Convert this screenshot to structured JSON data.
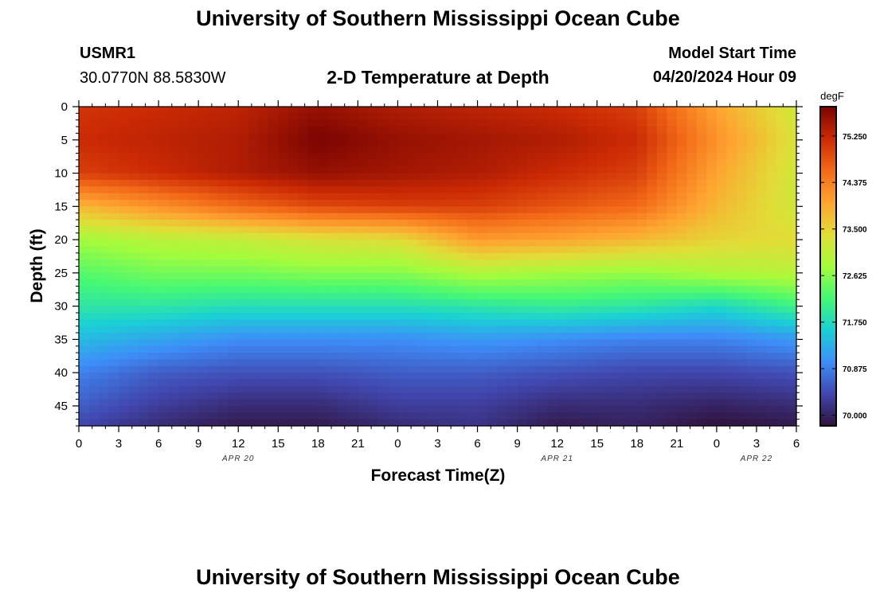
{
  "header": {
    "title": "University of Southern Mississippi Ocean Cube",
    "station_id": "USMR1",
    "location": "30.0770N  88.5830W",
    "model_start_label": "Model Start Time",
    "model_start_value": "04/20/2024 Hour 09"
  },
  "footer": {
    "title": "University of Southern Mississippi Ocean Cube"
  },
  "colors": {
    "colormap": [
      "#30123b",
      "#4146ad",
      "#3e8ef9",
      "#1ad0d5",
      "#45f875",
      "#a4fc3c",
      "#e1dd37",
      "#fea431",
      "#f36a18",
      "#cb2a04",
      "#7a0403"
    ]
  },
  "chart_data": {
    "type": "heatmap",
    "title": "2-D Temperature at Depth",
    "xlabel": "Forecast Time(Z)",
    "ylabel": "Depth (ft)",
    "x_range_hours": [
      0,
      54
    ],
    "x_ticks": [
      "0",
      "3",
      "6",
      "9",
      "12",
      "15",
      "18",
      "21",
      "0",
      "3",
      "6",
      "9",
      "12",
      "15",
      "18",
      "21",
      "0",
      "3",
      "6"
    ],
    "date_labels": [
      {
        "label": "APR 20",
        "hour": 12
      },
      {
        "label": "APR 21",
        "hour": 36
      },
      {
        "label": "APR 22",
        "hour": 51
      }
    ],
    "y_range_ft": [
      0,
      48
    ],
    "y_ticks": [
      "0",
      "5",
      "10",
      "15",
      "20",
      "25",
      "30",
      "35",
      "40",
      "45"
    ],
    "colorbar": {
      "units": "degF",
      "min": 69.8,
      "max": 75.8,
      "ticks": [
        "70.000",
        "70.875",
        "71.750",
        "72.625",
        "73.500",
        "74.375",
        "75.250"
      ]
    },
    "hours": [
      0,
      6,
      12,
      18,
      24,
      30,
      36,
      42,
      48,
      54
    ],
    "depths_ft": [
      0,
      5,
      10,
      15,
      20,
      25,
      30,
      35,
      40,
      45,
      48
    ],
    "temperature_degF": [
      [
        75.1,
        75.2,
        75.3,
        75.6,
        75.4,
        75.3,
        75.2,
        75.0,
        74.0,
        73.2
      ],
      [
        75.2,
        75.3,
        75.4,
        75.8,
        75.6,
        75.5,
        75.4,
        75.2,
        74.2,
        73.3
      ],
      [
        75.0,
        75.2,
        75.4,
        75.6,
        75.5,
        75.4,
        75.2,
        75.0,
        74.0,
        73.2
      ],
      [
        73.8,
        74.2,
        74.6,
        74.9,
        75.0,
        75.0,
        74.8,
        74.6,
        73.8,
        73.2
      ],
      [
        72.8,
        73.0,
        73.1,
        73.3,
        73.4,
        74.1,
        74.0,
        73.8,
        73.5,
        73.4
      ],
      [
        72.3,
        72.5,
        72.5,
        72.6,
        72.6,
        72.9,
        72.8,
        72.7,
        72.9,
        73.0
      ],
      [
        71.9,
        71.9,
        71.8,
        71.8,
        71.8,
        71.9,
        72.0,
        71.9,
        71.7,
        72.1
      ],
      [
        71.4,
        71.2,
        71.0,
        71.0,
        71.0,
        71.1,
        71.0,
        70.9,
        70.9,
        71.1
      ],
      [
        70.9,
        70.6,
        70.5,
        70.5,
        70.6,
        70.6,
        70.5,
        70.4,
        70.4,
        70.5
      ],
      [
        70.6,
        70.3,
        70.1,
        70.1,
        70.3,
        70.3,
        70.1,
        70.1,
        70.0,
        70.1
      ],
      [
        70.4,
        70.1,
        69.9,
        69.9,
        70.1,
        70.2,
        69.9,
        70.0,
        69.8,
        69.9
      ]
    ]
  }
}
